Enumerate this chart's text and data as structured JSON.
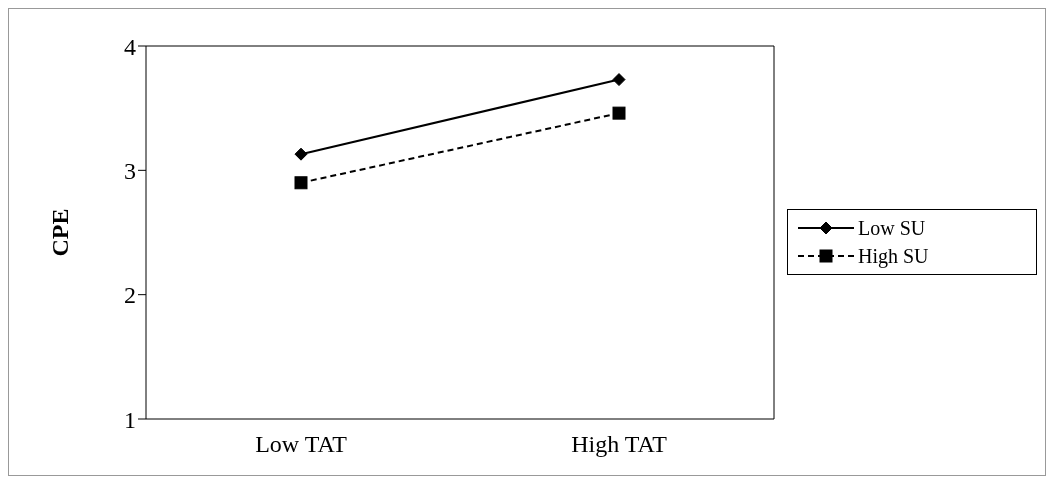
{
  "chart_data": {
    "type": "line",
    "ylabel": "CPE",
    "categories": [
      "Low TAT",
      "High TAT"
    ],
    "series": [
      {
        "name": "Low SU",
        "color": "#000000",
        "values": [
          3.13,
          3.73
        ],
        "marker": "diamond",
        "line_style": "solid"
      },
      {
        "name": "High SU",
        "color": "#000000",
        "values": [
          2.9,
          3.46
        ],
        "marker": "square",
        "line_style": "dashed"
      }
    ],
    "ylim": [
      1,
      4
    ],
    "yticks": [
      1,
      2,
      3,
      4
    ],
    "legend": "right"
  }
}
